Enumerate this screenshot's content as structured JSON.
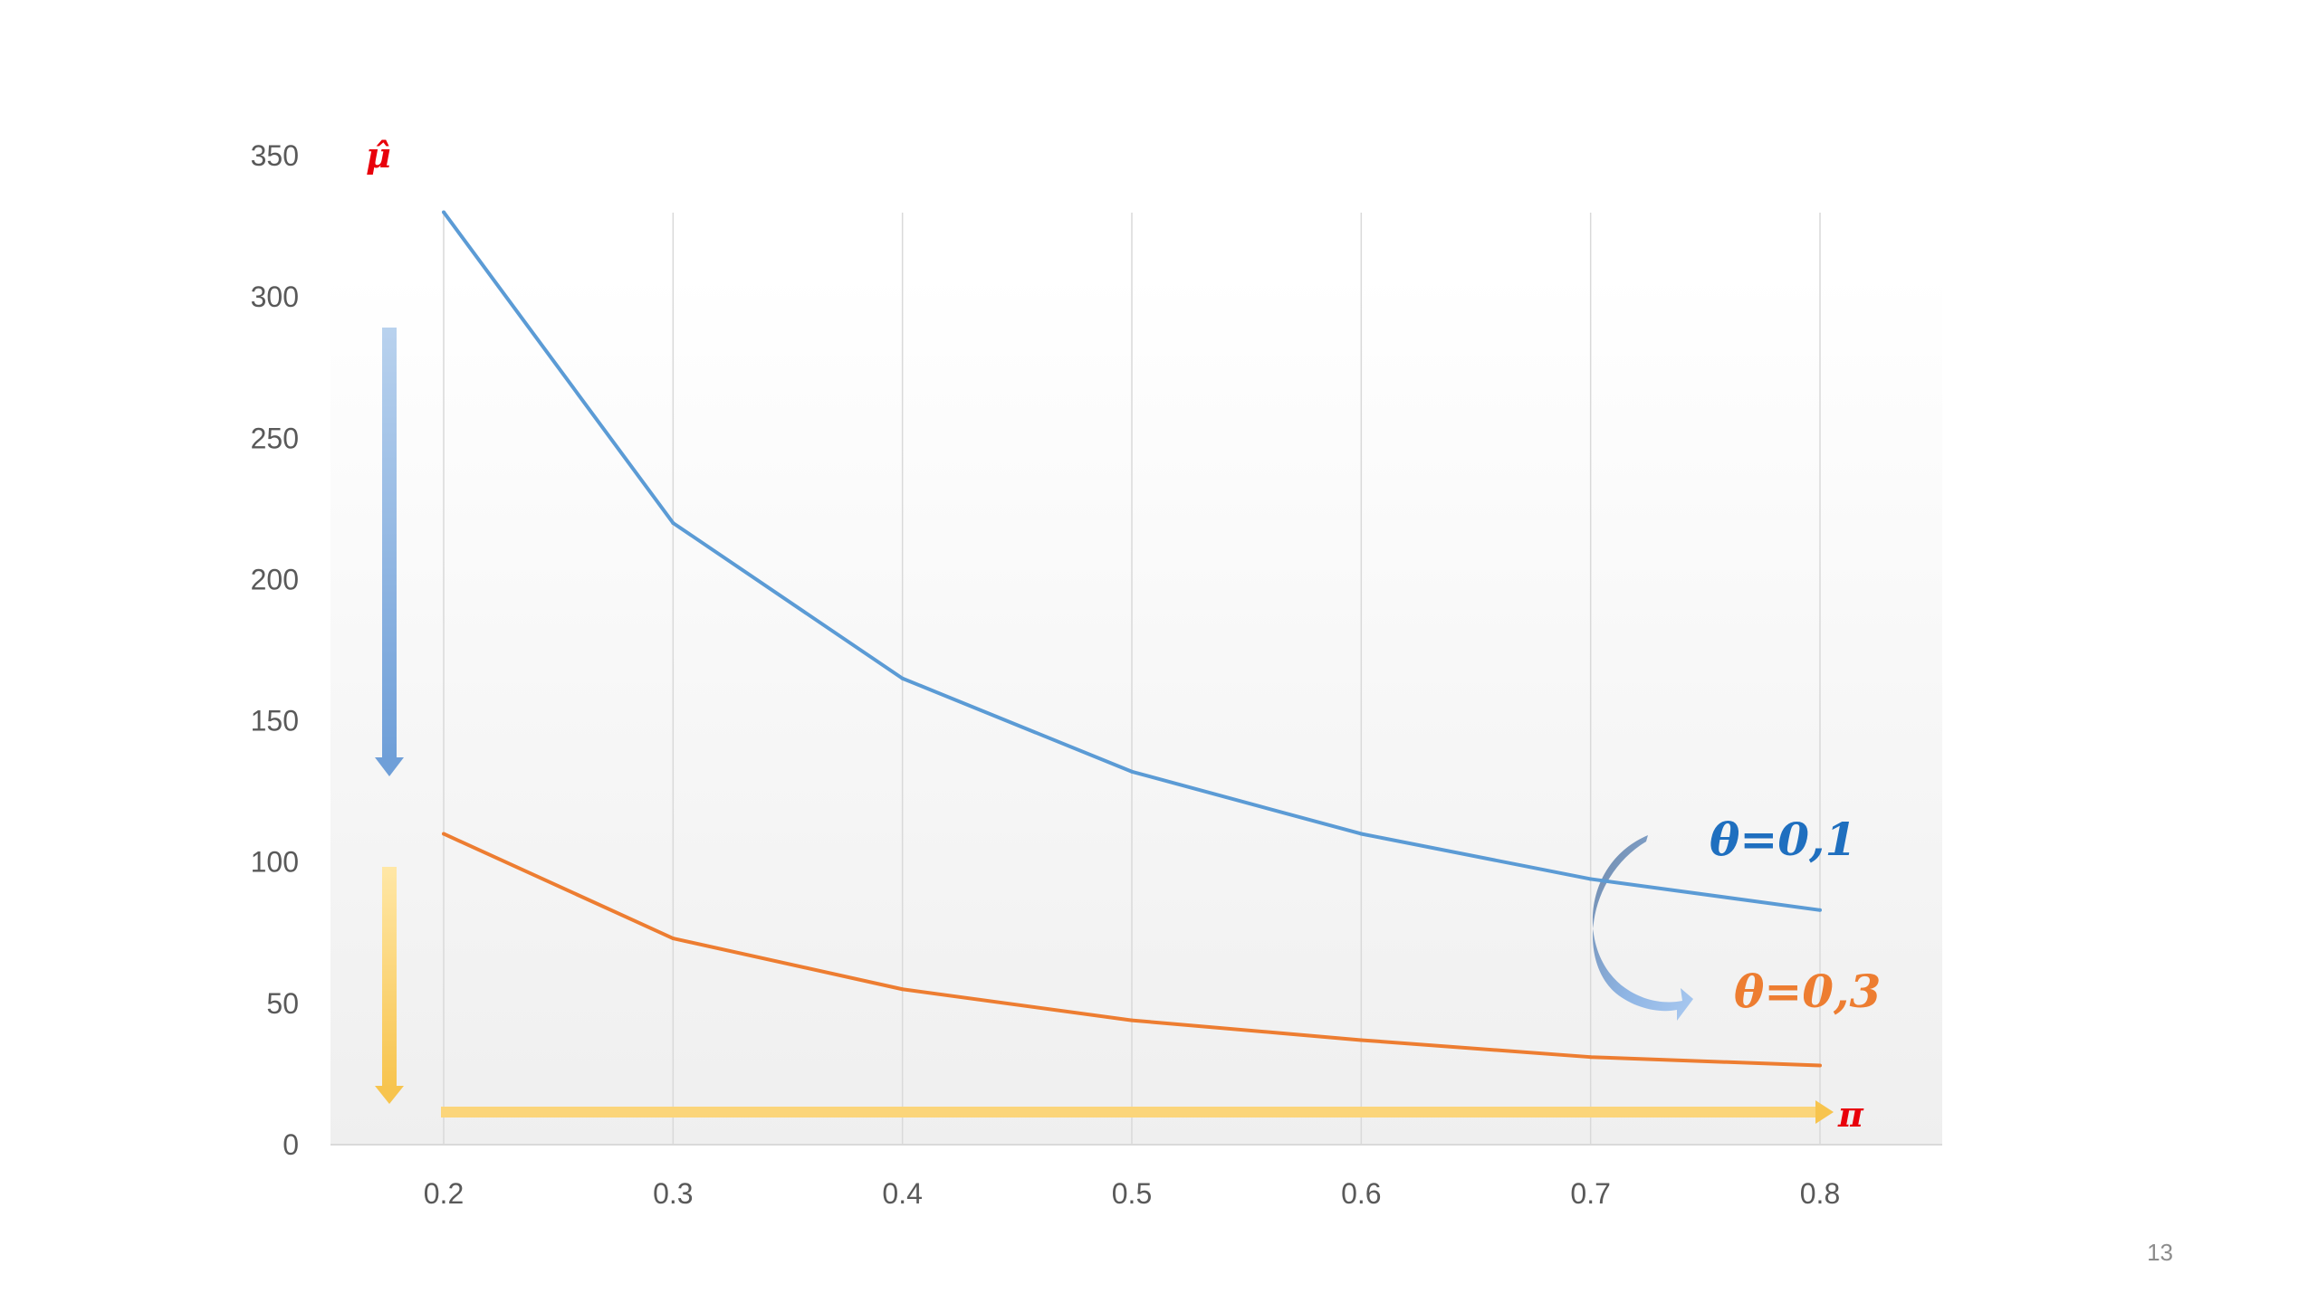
{
  "slide": {
    "page_number": "13"
  },
  "chart_data": {
    "type": "line",
    "x": [
      0.2,
      0.3,
      0.4,
      0.5,
      0.6,
      0.7,
      0.8
    ],
    "x_tick_labels": [
      "0.2",
      "0.3",
      "0.4",
      "0.5",
      "0.6",
      "0.7",
      "0.8"
    ],
    "y_ticks": [
      0,
      50,
      100,
      150,
      200,
      250,
      300,
      350
    ],
    "ylim": [
      0,
      350
    ],
    "xlabel": "π",
    "ylabel": "μ̂",
    "axis_label_color": "#e8000b",
    "grid": "vertical gridlines",
    "series": [
      {
        "name": "θ=0,1",
        "color": "#5b9bd5",
        "label_color": "#1f6fbf",
        "values": [
          330,
          220,
          165,
          132,
          110,
          94,
          83
        ]
      },
      {
        "name": "θ=0,3",
        "color": "#ed7d31",
        "label_color": "#ed7d31",
        "values": [
          110,
          73,
          55,
          44,
          37,
          31,
          28
        ]
      }
    ],
    "annotations": {
      "blue_arrow_direction": "down",
      "yellow_arrow_direction": "down",
      "x_arrow_direction": "right",
      "curved_arrow": "from θ=0,1 to θ=0,3"
    }
  }
}
